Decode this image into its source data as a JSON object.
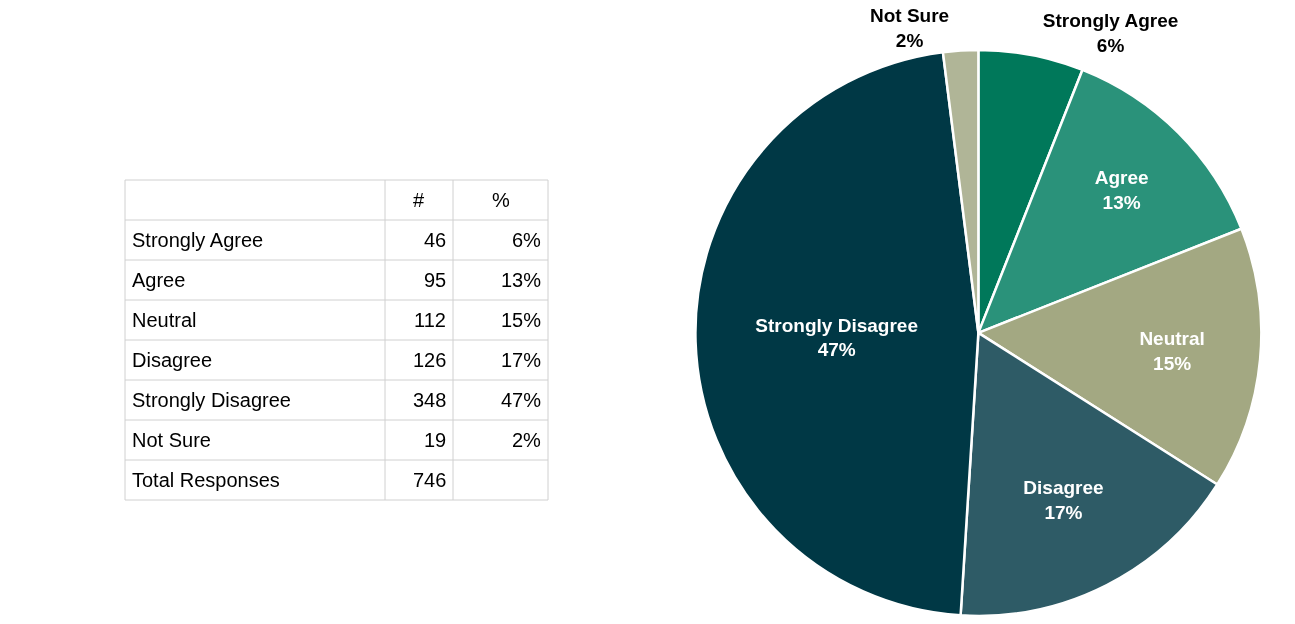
{
  "chart_data": [
    {
      "type": "other",
      "annotations": [
        "#",
        "%",
        "Strongly Agree",
        "46",
        "6%",
        "Agree",
        "95",
        "13%",
        "Neutral",
        "112",
        "15%",
        "Disagree",
        "126",
        "17%",
        "Strongly Disagree",
        "348",
        "47%",
        "Not Sure",
        "19",
        "2%",
        "Total Responses",
        "746"
      ]
    },
    {
      "type": "pie",
      "categories": [
        "Strongly Agree",
        "Agree",
        "Neutral",
        "Disagree",
        "Strongly Disagree",
        "Not Sure"
      ],
      "values": [
        6,
        13,
        15,
        17,
        47,
        2
      ],
      "value_labels": [
        "6%",
        "13%",
        "15%",
        "17%",
        "47%",
        "2%"
      ],
      "colors": [
        "#00785a",
        "#2a927a",
        "#a3a882",
        "#2e5b66",
        "#003845",
        "#b0b597"
      ],
      "data_labels": true
    }
  ]
}
